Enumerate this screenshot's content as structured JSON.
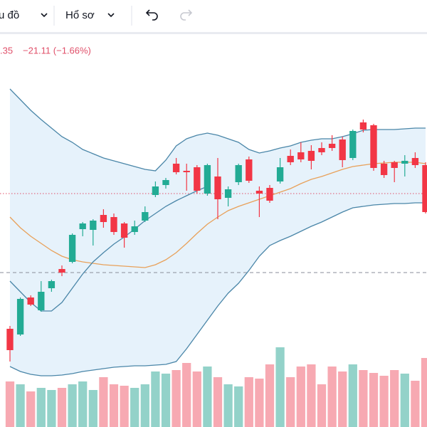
{
  "toolbar": {
    "items": [
      "u đồ",
      "Hổ sơ"
    ]
  },
  "chart_data": {
    "type": "candlestick",
    "readout": [
      ".35",
      "−21.11 (−1.66%)"
    ],
    "ylim": [
      1160,
      1325
    ],
    "y2lim": [
      0,
      550
    ],
    "up_color": "#22ab94",
    "down_color": "#f23645",
    "open": [
      1201.4,
      1199,
      1214.6,
      1209.2,
      1218.5,
      1226.6,
      1229.6,
      1243.4,
      1243.1,
      1249.4,
      1248.5,
      1245.8,
      1242.2,
      1247,
      1257.8,
      1262,
      1271,
      1268,
      1269.5,
      1258.4,
      1265.6,
      1256.6,
      1263.2,
      1272.8,
      1259.6,
      1260.8,
      1263.5,
      1274.3,
      1275.8,
      1276.4,
      1277.6,
      1279.4,
      1281.2,
      1273.4,
      1288.4,
      1287.2,
      1271,
      1271.6,
      1271,
      1273.4,
      1270.4
    ],
    "high": [
      1202.6,
      1214.6,
      1215.5,
      1221.5,
      1222.1,
      1228.1,
      1241.6,
      1246.4,
      1247.6,
      1251.8,
      1250,
      1246.4,
      1247,
      1253,
      1263.5,
      1265,
      1273.4,
      1271,
      1270.4,
      1271,
      1273.4,
      1261.4,
      1271,
      1274,
      1261.4,
      1262,
      1273.4,
      1277,
      1280,
      1278.8,
      1280,
      1283,
      1282.4,
      1285.4,
      1289.6,
      1287.8,
      1272.2,
      1272.2,
      1274.6,
      1275.8,
      1271.6
    ],
    "low": [
      1187.6,
      1198.4,
      1211,
      1208.6,
      1217,
      1223.6,
      1229,
      1240.4,
      1236.5,
      1244,
      1241,
      1235.6,
      1241,
      1246.4,
      1256.9,
      1260.5,
      1266.5,
      1259.6,
      1258.4,
      1257.5,
      1247.6,
      1253,
      1262,
      1262.9,
      1248.5,
      1254.5,
      1262.6,
      1270.4,
      1271.6,
      1268.6,
      1274.6,
      1276.4,
      1269.5,
      1272.5,
      1284.2,
      1268,
      1265,
      1263.2,
      1265.6,
      1269.2,
      1250
    ],
    "close": [
      1192.4,
      1214,
      1211.6,
      1217,
      1221.5,
      1225.1,
      1241,
      1245.8,
      1247,
      1246.4,
      1242.2,
      1239.8,
      1244.6,
      1250.6,
      1261.4,
      1264.1,
      1267.4,
      1267.4,
      1259.6,
      1270.4,
      1256,
      1260.2,
      1270.4,
      1263.8,
      1258.4,
      1255.4,
      1269.5,
      1271.6,
      1272.8,
      1272.2,
      1275.8,
      1277.6,
      1272.5,
      1284.8,
      1285.4,
      1269.2,
      1266.2,
      1269.2,
      1272.2,
      1270.4,
      1250.6
    ],
    "lines": [
      {
        "color": "#4a86a8",
        "values": [
          1302.5,
          1298,
          1293.5,
          1289.6,
          1286,
          1282.4,
          1280,
          1277,
          1275.2,
          1273.4,
          1272.2,
          1271,
          1269.8,
          1268.6,
          1268,
          1272.5,
          1278.5,
          1281.5,
          1283,
          1283.9,
          1283,
          1281.5,
          1280,
          1277,
          1275.5,
          1276.4,
          1277.6,
          1278.5,
          1280,
          1280.9,
          1281.5,
          1281.5,
          1282.4,
          1283.6,
          1285.1,
          1285.4,
          1285.4,
          1285.4,
          1285.7,
          1286,
          1286
        ]
      },
      {
        "color": "#e8a15a",
        "values": [
          1248.5,
          1244,
          1240.4,
          1237.4,
          1234.4,
          1232,
          1230.5,
          1229.6,
          1229,
          1228.4,
          1228.1,
          1227.8,
          1227.5,
          1227.2,
          1228.4,
          1230.5,
          1233.5,
          1237.4,
          1241.6,
          1245.5,
          1248.5,
          1251.2,
          1253,
          1254.5,
          1256,
          1257.5,
          1259,
          1260.5,
          1262.6,
          1264.4,
          1265.6,
          1267.1,
          1268.6,
          1269.8,
          1270.4,
          1271,
          1271.3,
          1271.6,
          1271.6,
          1271.6,
          1271
        ]
      },
      {
        "color": "#4a86a8",
        "values": [
          1221.5,
          1217,
          1212.5,
          1208.9,
          1208.9,
          1212.5,
          1218.5,
          1224.5,
          1229.6,
          1233.5,
          1237.1,
          1240.1,
          1243.4,
          1247,
          1250,
          1253,
          1255.4,
          1257.5,
          1259.6,
          1261.4,
          null,
          null,
          null,
          null,
          null,
          null,
          null,
          null,
          null,
          null,
          null,
          null,
          null,
          null,
          null,
          null,
          null,
          null,
          null,
          null,
          null
        ]
      },
      {
        "color": "#4a86a8",
        "values": [
          1185.5,
          1183.4,
          1182.2,
          1181.6,
          1181.6,
          1181.9,
          1182.5,
          1183.4,
          1184,
          1184.6,
          1185.2,
          1185.5,
          1185.8,
          1185.8,
          1186.1,
          1186.4,
          1187.6,
          1193,
          1199,
          1205,
          1211,
          1216.4,
          1220.6,
          1226,
          1232,
          1236.5,
          1238.6,
          1240.4,
          1242.5,
          1244.6,
          1246.4,
          1248.5,
          1250.6,
          1252.4,
          1253,
          1253.6,
          1253.9,
          1254.2,
          1254.2,
          1254.5,
          1254.5
        ]
      }
    ],
    "band_fill": "#e6f2fb",
    "volume": {
      "axis": "y2",
      "up_color": "#93d2c9",
      "down_color": "#f7a9b2",
      "values": [
        64,
        60,
        50,
        55,
        52,
        55,
        60,
        64,
        52,
        70,
        60,
        58,
        55,
        60,
        78,
        75,
        80,
        90,
        78,
        85,
        70,
        60,
        57,
        70,
        68,
        88,
        112,
        70,
        85,
        88,
        60,
        85,
        78,
        88,
        80,
        76,
        72,
        80,
        75,
        65,
        97
      ]
    },
    "hlines": [
      {
        "value": 1258.4,
        "color": "#e0506a",
        "style": "dotted"
      },
      {
        "value": 1225.1,
        "color": "#8a8e99",
        "style": "dashed"
      }
    ]
  }
}
